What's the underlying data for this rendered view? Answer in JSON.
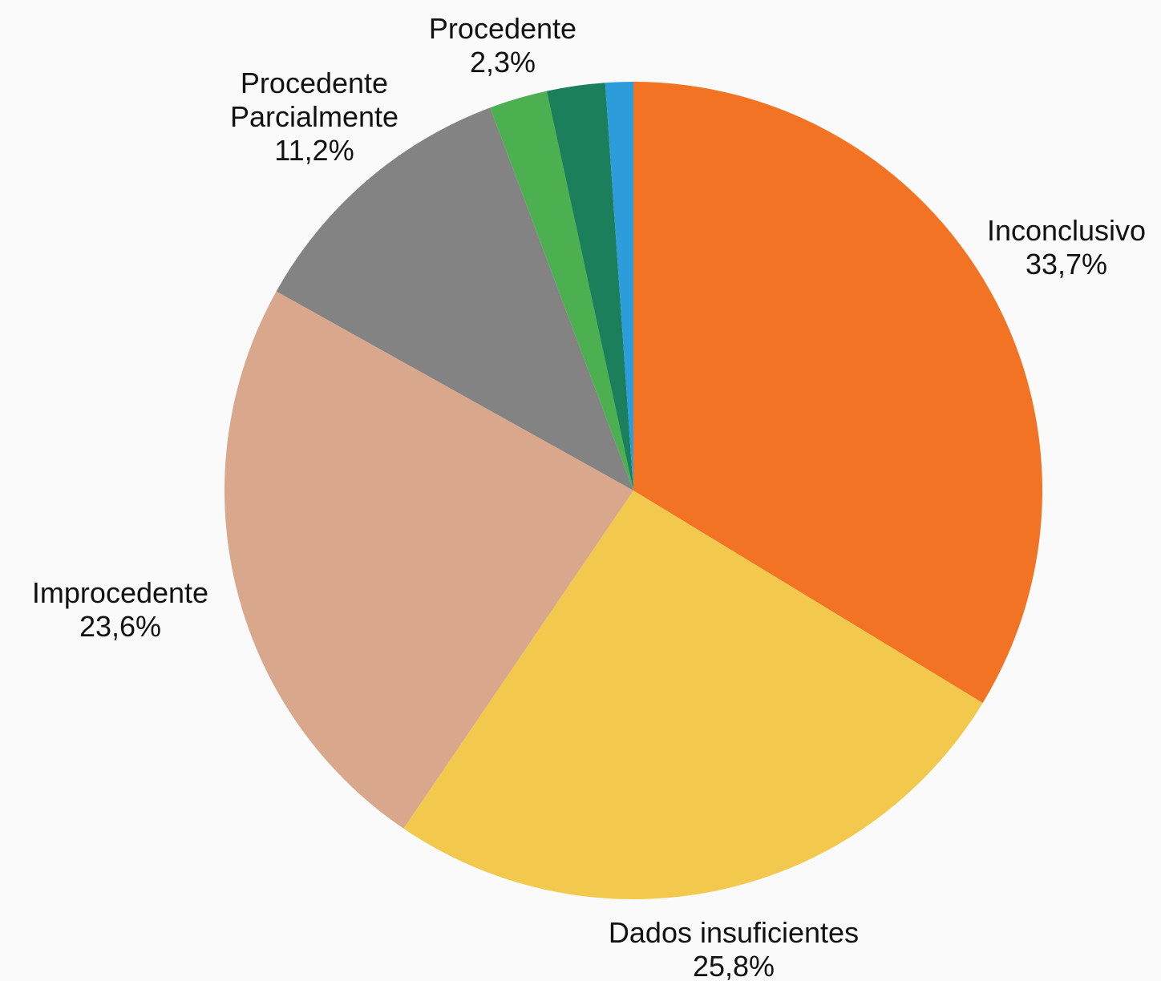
{
  "chart_data": {
    "type": "pie",
    "title": "",
    "start_angle_deg": 0,
    "direction": "clockwise",
    "slices": [
      {
        "label": [
          "Inconclusivo"
        ],
        "value": 33.7,
        "value_label": "33,7%",
        "color": "#F27323",
        "label_anchor": "middle"
      },
      {
        "label": [
          "Dados insuficientes"
        ],
        "value": 25.8,
        "value_label": "25,8%",
        "color": "#F2C94C",
        "label_anchor": "middle"
      },
      {
        "label": [
          "Improcedente"
        ],
        "value": 23.6,
        "value_label": "23,6%",
        "color": "#D9A78C",
        "label_anchor": "middle"
      },
      {
        "label": [
          "Procedente",
          "Parcialmente"
        ],
        "value": 11.2,
        "value_label": "11,2%",
        "color": "#838383",
        "label_anchor": "middle"
      },
      {
        "label": [],
        "value": 2.3,
        "value_label": "",
        "color": "#4CAF50",
        "label_anchor": "middle"
      },
      {
        "label": [
          "Procedente"
        ],
        "value": 2.3,
        "value_label": "2,3%",
        "color": "#1C7F5C",
        "label_anchor": "middle"
      },
      {
        "label": [],
        "value": 1.1,
        "value_label": "",
        "color": "#2D9CDB",
        "label_anchor": "middle"
      }
    ]
  }
}
